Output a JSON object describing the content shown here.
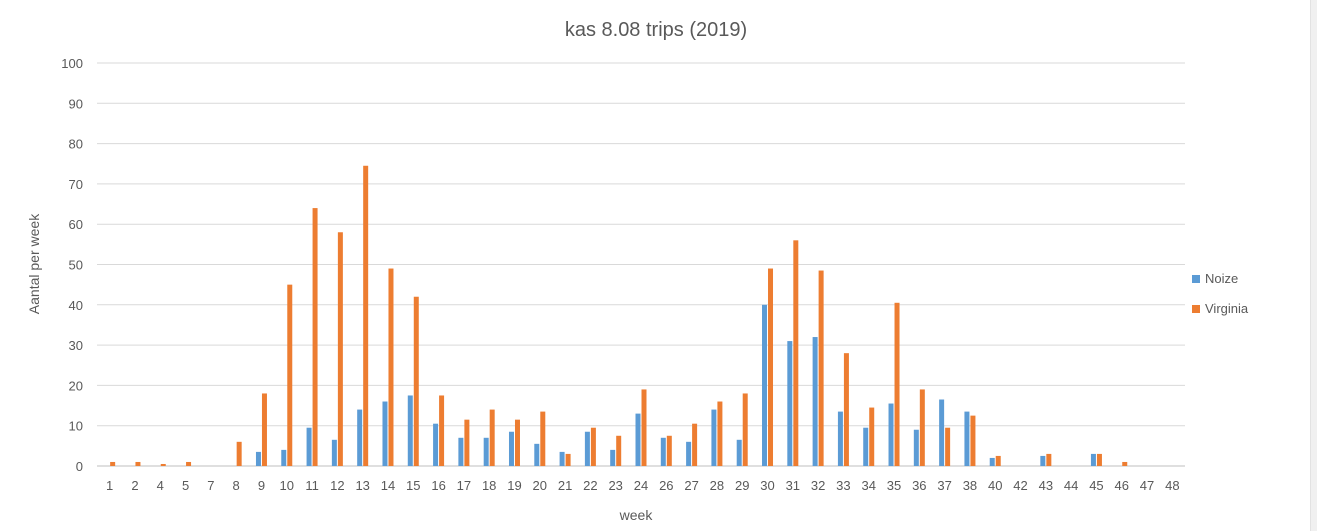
{
  "chart_data": {
    "type": "bar",
    "title": "kas 8.08 trips (2019)",
    "xlabel": "week",
    "ylabel": "Aantal per week",
    "ylim": [
      0,
      100
    ],
    "yticks": [
      0,
      10,
      20,
      30,
      40,
      50,
      60,
      70,
      80,
      90,
      100
    ],
    "grid": true,
    "legend": "right",
    "categories": [
      "1",
      "2",
      "4",
      "5",
      "7",
      "8",
      "9",
      "10",
      "11",
      "12",
      "13",
      "14",
      "15",
      "16",
      "17",
      "18",
      "19",
      "20",
      "21",
      "22",
      "23",
      "24",
      "26",
      "27",
      "28",
      "29",
      "30",
      "31",
      "32",
      "33",
      "34",
      "35",
      "36",
      "37",
      "38",
      "40",
      "42",
      "43",
      "44",
      "45",
      "46",
      "47",
      "48"
    ],
    "series": [
      {
        "name": "Noize",
        "color": "#5B9BD5",
        "values": [
          0,
          0,
          0,
          0,
          0,
          0,
          3.5,
          4,
          9.5,
          6.5,
          14,
          16,
          17.5,
          10.5,
          7,
          7,
          8.5,
          5.5,
          3.5,
          8.5,
          4,
          13,
          7,
          6,
          14,
          6.5,
          40,
          31,
          32,
          13.5,
          9.5,
          15.5,
          9,
          16.5,
          13.5,
          2,
          0,
          2.5,
          0,
          3,
          0,
          0,
          0
        ]
      },
      {
        "name": "Virginia",
        "color": "#ED7D31",
        "values": [
          1,
          1,
          0.5,
          1,
          0,
          6,
          18,
          45,
          64,
          58,
          74.5,
          49,
          42,
          17.5,
          11.5,
          14,
          11.5,
          13.5,
          3,
          9.5,
          7.5,
          19,
          7.5,
          10.5,
          16,
          18,
          49,
          56,
          48.5,
          28,
          14.5,
          40.5,
          19,
          9.5,
          12.5,
          2.5,
          0,
          3,
          0,
          3,
          1,
          0,
          0
        ]
      }
    ]
  }
}
